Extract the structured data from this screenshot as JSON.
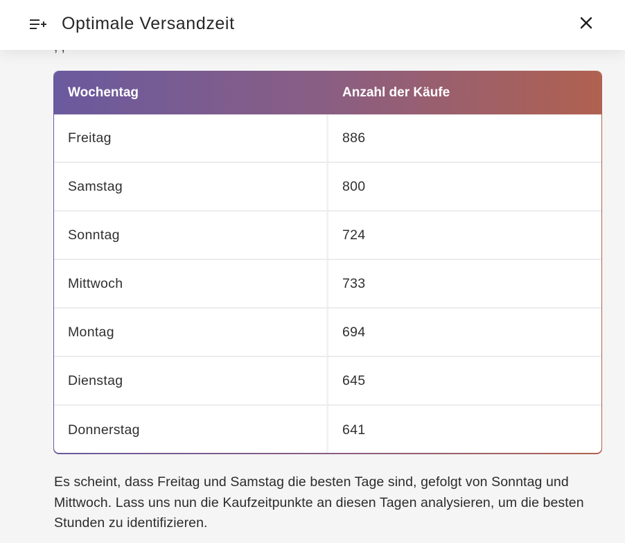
{
  "header": {
    "title": "Optimale Versandzeit",
    "menu_icon": "list-add-icon",
    "close_icon": "close-icon"
  },
  "scrolled_text": ", , ",
  "table": {
    "columns": [
      "Wochentag",
      "Anzahl der Käufe"
    ],
    "rows": [
      [
        "Freitag",
        "886"
      ],
      [
        "Samstag",
        "800"
      ],
      [
        "Sonntag",
        "724"
      ],
      [
        "Mittwoch",
        "733"
      ],
      [
        "Montag",
        "694"
      ],
      [
        "Dienstag",
        "645"
      ],
      [
        "Donnerstag",
        "641"
      ]
    ],
    "header_gradient": [
      "#6a5a9e",
      "#8a5e83",
      "#b06150"
    ]
  },
  "paragraph": "Es scheint, dass Freitag und Samstag die besten Tage sind, gefolgt von Sonntag und Mittwoch. Lass uns nun die Kaufzeitpunkte an diesen Tagen analysieren, um die besten Stunden zu identifizieren.",
  "colors": {
    "background": "#f5f5f5",
    "header_bg": "#ffffff",
    "text": "#2b2b2b"
  }
}
